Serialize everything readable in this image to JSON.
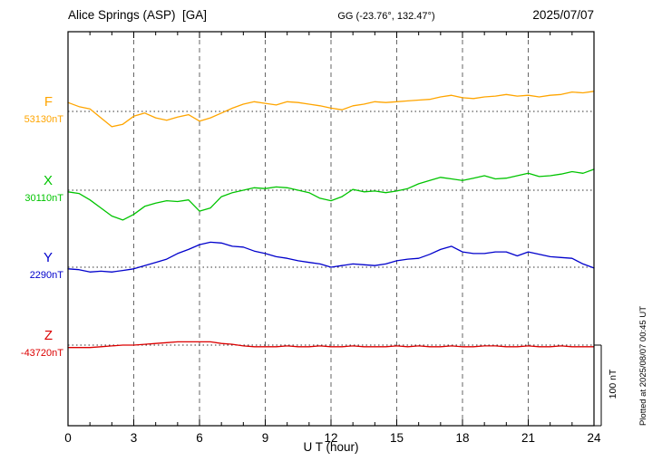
{
  "header": {
    "station": "Alice Springs (ASP)  [GA]",
    "coords": "GG (-23.76°, 132.47°)",
    "date": "2025/07/07"
  },
  "footer": {
    "plotted_at": "Plotted at 2025/08/07 00:45 UT"
  },
  "chart_data": {
    "type": "line",
    "title": "Alice Springs (ASP) magnetogram 2025/07/07",
    "xlabel": "U T (hour)",
    "ylabel": "",
    "x_range": [
      0,
      24
    ],
    "x_major_ticks": [
      0,
      3,
      6,
      9,
      12,
      15,
      18,
      21,
      24
    ],
    "x_minor_tick_step": 1,
    "grid": "vertical dashed lines at 3-hour marks; dotted horizontal baseline per component",
    "legend_position": "left margin, one colored letter + baseline value per trace",
    "scale_bar": {
      "label": "100 nT",
      "nT": 100
    },
    "sample_step_hours": 0.5,
    "series": [
      {
        "name": "F",
        "baseline_label": "53130nT",
        "baseline_nT": 53130,
        "color": "#FFA500",
        "values_offset_nT": [
          11,
          6,
          3,
          -8,
          -19,
          -16,
          -6,
          -2,
          -8,
          -11,
          -7,
          -4,
          -12,
          -8,
          -2,
          4,
          9,
          12,
          10,
          8,
          12,
          11,
          9,
          7,
          4,
          2,
          7,
          9,
          12,
          11,
          12,
          13,
          14,
          15,
          18,
          20,
          17,
          16,
          18,
          19,
          21,
          19,
          20,
          18,
          20,
          21,
          24,
          23,
          25
        ]
      },
      {
        "name": "X",
        "baseline_label": "30110nT",
        "baseline_nT": 30110,
        "color": "#00C400",
        "values_offset_nT": [
          -2,
          -4,
          -12,
          -22,
          -32,
          -37,
          -30,
          -20,
          -16,
          -13,
          -14,
          -12,
          -26,
          -22,
          -8,
          -3,
          0,
          3,
          2,
          4,
          3,
          0,
          -3,
          -10,
          -13,
          -8,
          1,
          -2,
          -1,
          -3,
          -1,
          2,
          8,
          12,
          16,
          14,
          12,
          15,
          18,
          14,
          15,
          18,
          21,
          17,
          18,
          20,
          23,
          21,
          26
        ]
      },
      {
        "name": "Y",
        "baseline_label": "2290nT",
        "baseline_nT": 2290,
        "color": "#0000CC",
        "values_offset_nT": [
          -2,
          -3,
          -6,
          -5,
          -6,
          -4,
          -2,
          2,
          6,
          10,
          17,
          22,
          28,
          31,
          30,
          26,
          25,
          20,
          17,
          13,
          11,
          8,
          6,
          4,
          0,
          2,
          4,
          3,
          2,
          4,
          8,
          10,
          11,
          16,
          22,
          26,
          19,
          17,
          17,
          19,
          19,
          14,
          19,
          16,
          13,
          12,
          11,
          4,
          -1
        ]
      },
      {
        "name": "Z",
        "baseline_label": "-43720nT",
        "baseline_nT": -43720,
        "color": "#DC0000",
        "values_offset_nT": [
          -3,
          -3,
          -3,
          -2,
          -1,
          0,
          0,
          1,
          2,
          3,
          4,
          4,
          4,
          4,
          2,
          1,
          -1,
          -2,
          -2,
          -2,
          -1,
          -2,
          -2,
          -1,
          -2,
          -2,
          -1,
          -2,
          -2,
          -2,
          -1,
          -2,
          -1,
          -2,
          -2,
          -1,
          -2,
          -2,
          -1,
          -1,
          -2,
          -2,
          -1,
          -2,
          -2,
          -1,
          -2,
          -2,
          -2
        ]
      }
    ]
  }
}
